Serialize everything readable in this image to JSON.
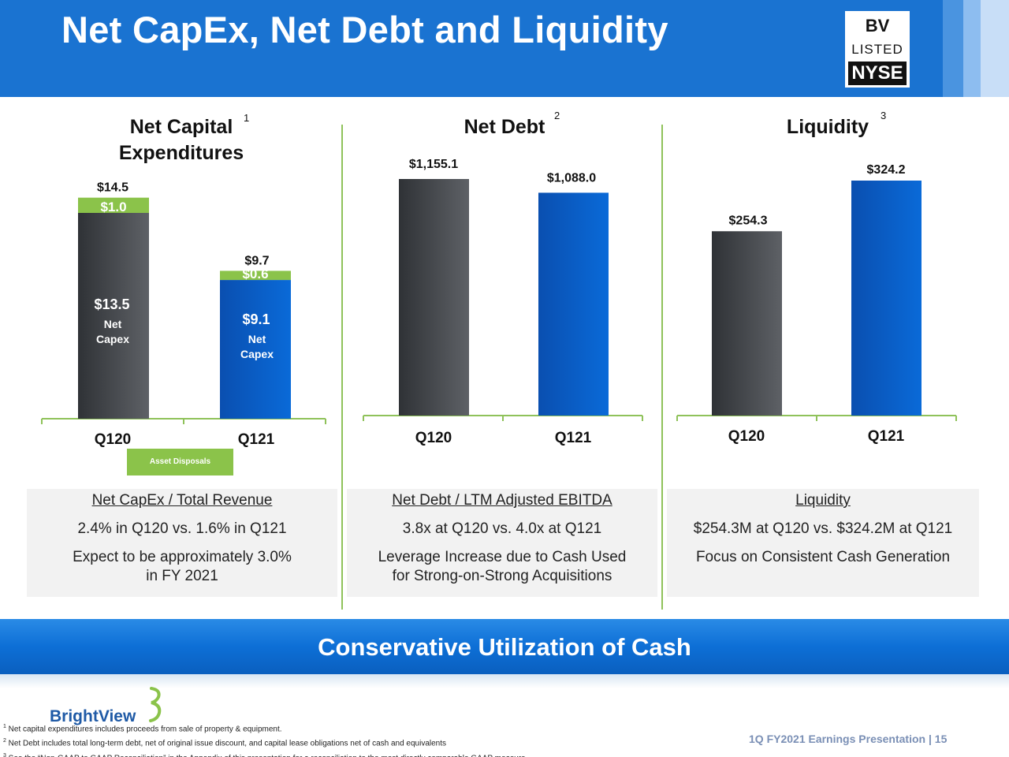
{
  "header": {
    "title": "Net CapEx, Net Debt and Liquidity",
    "badge": {
      "line1": "BV",
      "line2": "LISTED",
      "line3": "NYSE"
    }
  },
  "panels": {
    "capex": {
      "title_line1": "Net Capital",
      "title_line2": "Expenditures",
      "footnote_ref": "1"
    },
    "debt": {
      "title": "Net Debt",
      "footnote_ref": "2"
    },
    "liquidity": {
      "title": "Liquidity",
      "footnote_ref": "3"
    }
  },
  "legend": {
    "asset_disposals": "Asset Disposals"
  },
  "chart_data": [
    {
      "type": "bar",
      "title": "Net Capital Expenditures",
      "categories": [
        "Q120",
        "Q121"
      ],
      "series": [
        {
          "name": "Net Capex",
          "values": [
            13.5,
            9.1
          ],
          "labels": [
            "$13.5",
            "$9.1"
          ],
          "sublabel": [
            "Net",
            "Capex"
          ]
        },
        {
          "name": "Asset Disposals",
          "values": [
            1.0,
            0.6
          ],
          "labels": [
            "$1.0",
            "$0.6"
          ]
        }
      ],
      "totals": [
        14.5,
        9.7
      ],
      "total_labels": [
        "$14.5",
        "$9.7"
      ],
      "stacked": true,
      "ylim": [
        0,
        15
      ]
    },
    {
      "type": "bar",
      "title": "Net Debt",
      "categories": [
        "Q120",
        "Q121"
      ],
      "values": [
        1155.1,
        1088.0
      ],
      "labels": [
        "$1,155.1",
        "$1,088.0"
      ],
      "ylim": [
        0,
        1155.1
      ]
    },
    {
      "type": "bar",
      "title": "Liquidity",
      "categories": [
        "Q120",
        "Q121"
      ],
      "values": [
        254.3,
        324.2
      ],
      "labels": [
        "$254.3",
        "$324.2"
      ],
      "ylim": [
        0,
        324.2
      ]
    }
  ],
  "colors": {
    "dark_bar": "#4a4d52",
    "blue_bar": "#0a62c9",
    "green": "#8bc34a",
    "axis": "#8fc25a"
  },
  "info": {
    "capex": {
      "heading": "Net CapEx / Total Revenue",
      "line1": "2.4% in Q120 vs. 1.6% in Q121",
      "line2a": "Expect to be approximately 3.0%",
      "line2b": "in FY 2021"
    },
    "debt": {
      "heading": "Net Debt / LTM Adjusted EBITDA",
      "line1": "3.8x at Q120 vs. 4.0x at Q121",
      "line2a": "Leverage Increase due to Cash Used",
      "line2b": "for Strong-on-Strong Acquisitions"
    },
    "liquidity": {
      "heading": "Liquidity",
      "line1": "$254.3M at Q120 vs. $324.2M at Q121",
      "line2a": "Focus on Consistent Cash Generation",
      "line2b": ""
    }
  },
  "banner": {
    "text": "Conservative Utilization of Cash"
  },
  "brand": {
    "name": "BrightView"
  },
  "footnotes": [
    {
      "num": "1",
      "text": "Net capital expenditures includes proceeds from sale of property & equipment."
    },
    {
      "num": "2",
      "text": "Net Debt includes total long-term debt, net of original issue discount, and capital lease obligations net of cash and equivalents"
    },
    {
      "num": "3",
      "text": "See the “Non-GAAP to GAAP Reconciliation” in the Appendix of this presentation for a reconciliation to the most directly comparable GAAP measure"
    }
  ],
  "footer": {
    "presentation": "1Q FY2021 Earnings Presentation | 15"
  }
}
